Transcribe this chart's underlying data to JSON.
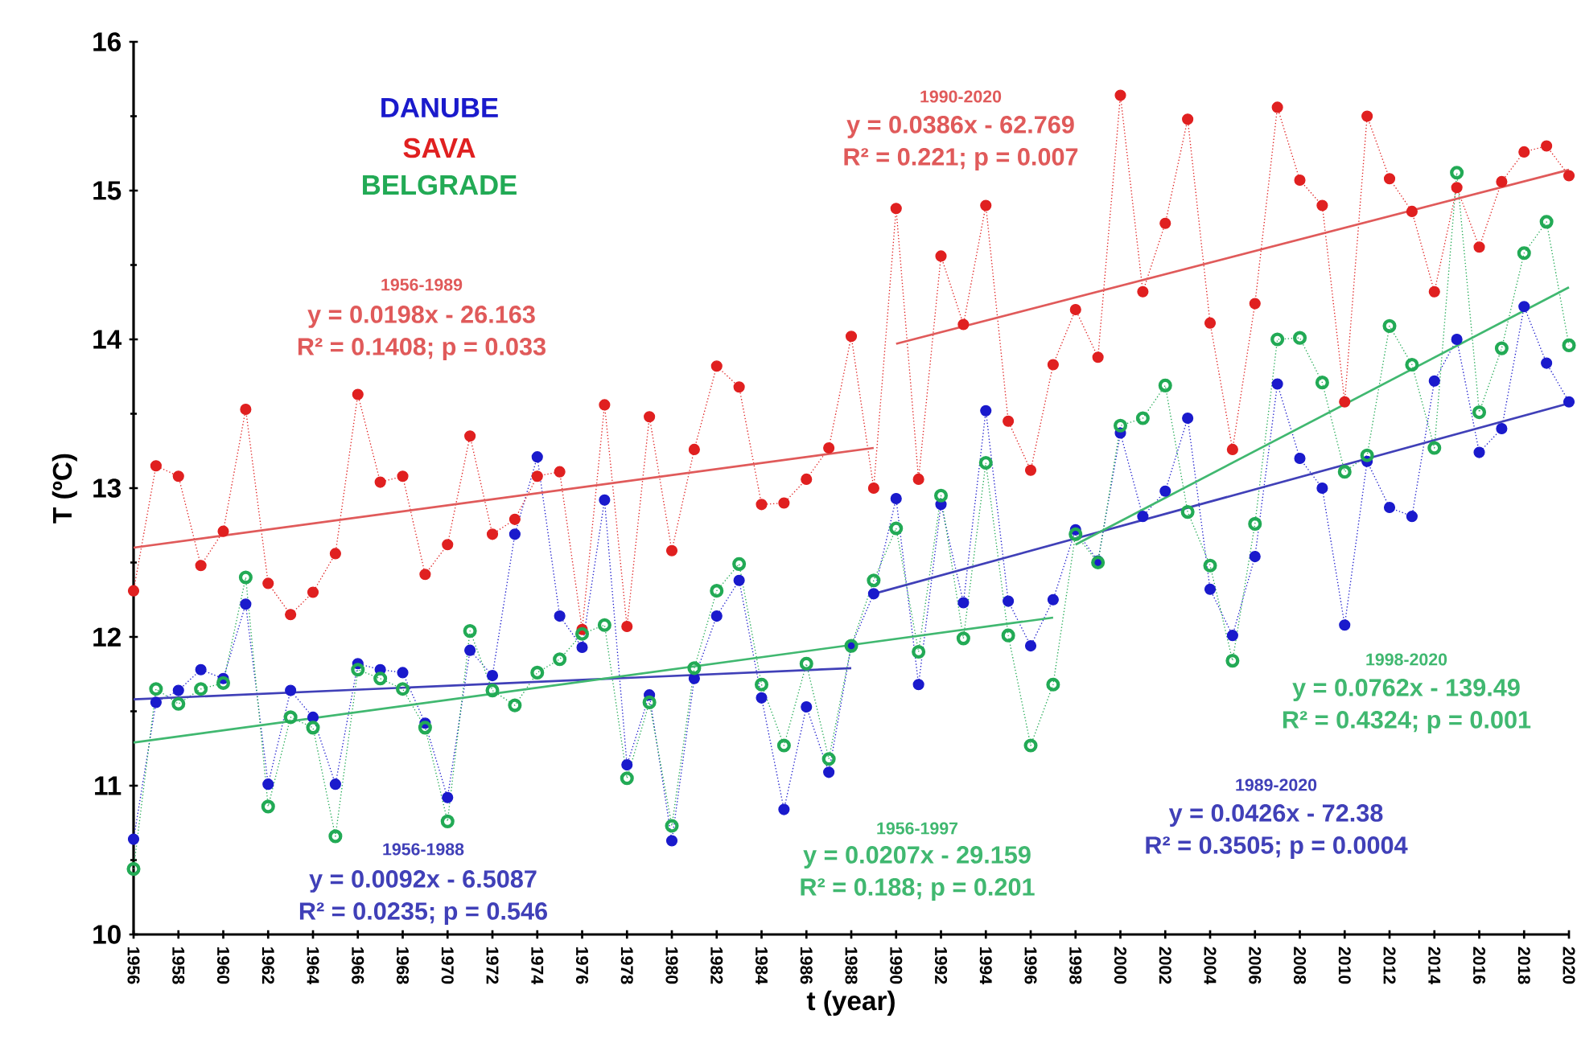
{
  "chart_data": {
    "type": "line",
    "xlabel": "t (year)",
    "ylabel": "T (ºC)",
    "x": [
      1956,
      1957,
      1958,
      1959,
      1960,
      1961,
      1962,
      1963,
      1964,
      1965,
      1966,
      1967,
      1968,
      1969,
      1970,
      1971,
      1972,
      1973,
      1974,
      1975,
      1976,
      1977,
      1978,
      1979,
      1980,
      1981,
      1982,
      1983,
      1984,
      1985,
      1986,
      1987,
      1988,
      1989,
      1990,
      1991,
      1992,
      1993,
      1994,
      1995,
      1996,
      1997,
      1998,
      1999,
      2000,
      2001,
      2002,
      2003,
      2004,
      2005,
      2006,
      2007,
      2008,
      2009,
      2010,
      2011,
      2012,
      2013,
      2014,
      2015,
      2016,
      2017,
      2018,
      2019,
      2020
    ],
    "xlim": [
      1956,
      2020
    ],
    "ylim": [
      10,
      16
    ],
    "xticks": [
      1956,
      1958,
      1960,
      1962,
      1964,
      1966,
      1968,
      1970,
      1972,
      1974,
      1976,
      1978,
      1980,
      1982,
      1984,
      1986,
      1988,
      1990,
      1992,
      1994,
      1996,
      1998,
      2000,
      2002,
      2004,
      2006,
      2008,
      2010,
      2012,
      2014,
      2016,
      2018,
      2020
    ],
    "yticks": [
      10,
      11,
      12,
      13,
      14,
      15,
      16
    ],
    "grid": false,
    "marker": "circle",
    "line_style": "dotted",
    "series": [
      {
        "name": "DANUBE",
        "color": "#1a1acc",
        "values": [
          10.64,
          11.56,
          11.64,
          11.78,
          11.72,
          12.22,
          11.01,
          11.64,
          11.46,
          11.01,
          11.82,
          11.78,
          11.76,
          11.42,
          10.92,
          11.91,
          11.74,
          12.69,
          13.21,
          12.14,
          11.93,
          12.92,
          11.14,
          11.61,
          10.63,
          11.72,
          12.14,
          12.38,
          11.59,
          10.84,
          11.53,
          11.09,
          11.94,
          12.29,
          12.93,
          11.68,
          12.89,
          12.23,
          13.52,
          12.24,
          11.94,
          12.25,
          12.72,
          12.51,
          13.37,
          12.81,
          12.98,
          13.47,
          12.32,
          12.01,
          12.54,
          13.7,
          13.2,
          13.0,
          12.08,
          13.18,
          12.87,
          12.81,
          13.72,
          14.0,
          13.24,
          13.4,
          14.22,
          13.84,
          13.58
        ]
      },
      {
        "name": "SAVA",
        "color": "#e02020",
        "values": [
          12.31,
          13.15,
          13.08,
          12.48,
          12.71,
          13.53,
          12.36,
          12.15,
          12.3,
          12.56,
          13.63,
          13.04,
          13.08,
          12.42,
          12.62,
          13.35,
          12.69,
          12.79,
          13.08,
          13.11,
          12.05,
          13.56,
          12.07,
          13.48,
          12.58,
          13.26,
          13.82,
          13.68,
          12.89,
          12.9,
          13.06,
          13.27,
          14.02,
          13.0,
          14.88,
          13.06,
          14.56,
          14.1,
          14.9,
          13.45,
          13.12,
          13.83,
          14.2,
          13.88,
          15.64,
          14.32,
          14.78,
          15.48,
          14.11,
          13.26,
          14.24,
          15.56,
          15.07,
          14.9,
          13.58,
          15.5,
          15.08,
          14.86,
          14.32,
          15.02,
          14.62,
          15.06,
          15.26,
          15.3,
          15.1
        ]
      },
      {
        "name": "BELGRADE",
        "color": "#22aa55",
        "values": [
          10.44,
          11.65,
          11.55,
          11.65,
          11.69,
          12.4,
          10.86,
          11.46,
          11.39,
          10.66,
          11.78,
          11.72,
          11.65,
          11.39,
          10.76,
          12.04,
          11.64,
          11.54,
          11.76,
          11.85,
          12.02,
          12.08,
          11.05,
          11.56,
          10.73,
          11.79,
          12.31,
          12.49,
          11.68,
          11.27,
          11.82,
          11.18,
          11.94,
          12.38,
          12.73,
          11.9,
          12.95,
          11.99,
          13.17,
          12.01,
          11.27,
          11.68,
          12.69,
          12.5,
          13.42,
          13.47,
          13.69,
          12.84,
          12.48,
          11.84,
          12.76,
          14.0,
          14.01,
          13.71,
          13.11,
          13.22,
          14.09,
          13.83,
          13.27,
          15.12,
          13.51,
          13.94,
          14.58,
          14.79,
          13.96
        ]
      },
      {
        "type": "line",
        "color": "#4040b8",
        "line_style": "solid",
        "marker": "none",
        "x": [
          1956,
          1988
        ],
        "values": [
          11.58,
          11.79
        ]
      },
      {
        "type": "line",
        "color": "#4040b8",
        "line_style": "solid",
        "marker": "none",
        "x": [
          1989,
          2020
        ],
        "values": [
          12.29,
          13.57
        ]
      },
      {
        "type": "line",
        "color": "#e05a5a",
        "line_style": "solid",
        "marker": "none",
        "x": [
          1956,
          1989
        ],
        "values": [
          12.6,
          13.27
        ]
      },
      {
        "type": "line",
        "color": "#e05a5a",
        "line_style": "solid",
        "marker": "none",
        "x": [
          1990,
          2020
        ],
        "values": [
          13.97,
          15.14
        ]
      },
      {
        "type": "line",
        "color": "#40b870",
        "line_style": "solid",
        "marker": "none",
        "x": [
          1956,
          1997
        ],
        "values": [
          11.29,
          12.13
        ]
      },
      {
        "type": "line",
        "color": "#40b870",
        "line_style": "solid",
        "marker": "none",
        "x": [
          1998,
          2020
        ],
        "values": [
          12.62,
          14.35
        ]
      }
    ],
    "annotations": [
      "1956-1989",
      "y = 0.0198x - 26.163",
      "R² = 0.1408; p = 0.033",
      "1990-2020",
      "y = 0.0386x - 62.769",
      "R² = 0.221; p = 0.007",
      "1956-1988",
      "y = 0.0092x - 6.5087",
      "R² = 0.0235; p = 0.546",
      "1956-1997",
      "y = 0.0207x - 29.159",
      "R² = 0.188; p = 0.201",
      "1989-2020",
      "y = 0.0426x - 72.38",
      "R² = 0.3505; p = 0.0004",
      "1998-2020",
      "y = 0.0762x - 139.49",
      "R² = 0.4324; p = 0.001"
    ]
  }
}
